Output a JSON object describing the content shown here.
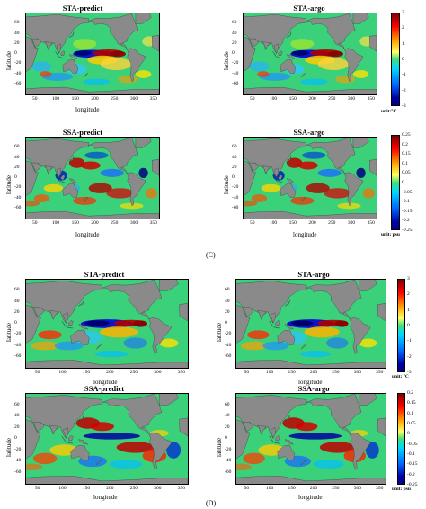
{
  "section_C": {
    "label": "(C)",
    "panels": [
      {
        "title": "STA-predict",
        "ylabel": "latitude",
        "xlabel": "longitude"
      },
      {
        "title": "STA-argo",
        "ylabel": "latitude",
        "xlabel": ""
      },
      {
        "title": "SSA-predict",
        "ylabel": "latitude",
        "xlabel": "longitude"
      },
      {
        "title": "SSA-argo",
        "ylabel": "latitude",
        "xlabel": "longitude"
      }
    ],
    "colorbar_temp": {
      "ticks": [
        "3",
        "2",
        "1",
        "0",
        "-1",
        "-2",
        "-3"
      ],
      "unit": "unit:°C"
    },
    "colorbar_sal": {
      "ticks": [
        "0.25",
        "0.2",
        "0.15",
        "0.1",
        "0.05",
        "0",
        "-0.05",
        "-0.1",
        "-0.15",
        "-0.2",
        "-0.25"
      ],
      "unit": "unit: psu"
    }
  },
  "section_D": {
    "label": "(D)",
    "panels": [
      {
        "title": "STA-predict",
        "ylabel": "latitude",
        "xlabel": "longitude"
      },
      {
        "title": "STA-argo",
        "ylabel": "latitude",
        "xlabel": "longitude"
      },
      {
        "title": "SSA-predict",
        "ylabel": "latitude",
        "xlabel": "longitude"
      },
      {
        "title": "SSA-argo",
        "ylabel": "latitude",
        "xlabel": "longitude"
      }
    ],
    "colorbar_temp": {
      "ticks": [
        "3",
        "2",
        "1",
        "0",
        "-1",
        "-2",
        "-3"
      ],
      "unit": "unit: °C"
    },
    "colorbar_sal": {
      "ticks": [
        "0.2",
        "0.15",
        "0.1",
        "0.05",
        "0",
        "-0.05",
        "-0.1",
        "-0.15",
        "-0.2",
        "-0.25"
      ],
      "unit": "unit: psu"
    }
  },
  "axes": {
    "x_ticks": [
      "50",
      "100",
      "150",
      "200",
      "250",
      "300",
      "350"
    ],
    "y_ticks": [
      "60",
      "40",
      "20",
      "0",
      "-20",
      "-40",
      "-60"
    ]
  },
  "colors": {
    "land": "#8a8a8a",
    "ocean_base": "#3bd07a",
    "cbar_top": "#7f0000",
    "cbar_bottom": "#00008f"
  }
}
